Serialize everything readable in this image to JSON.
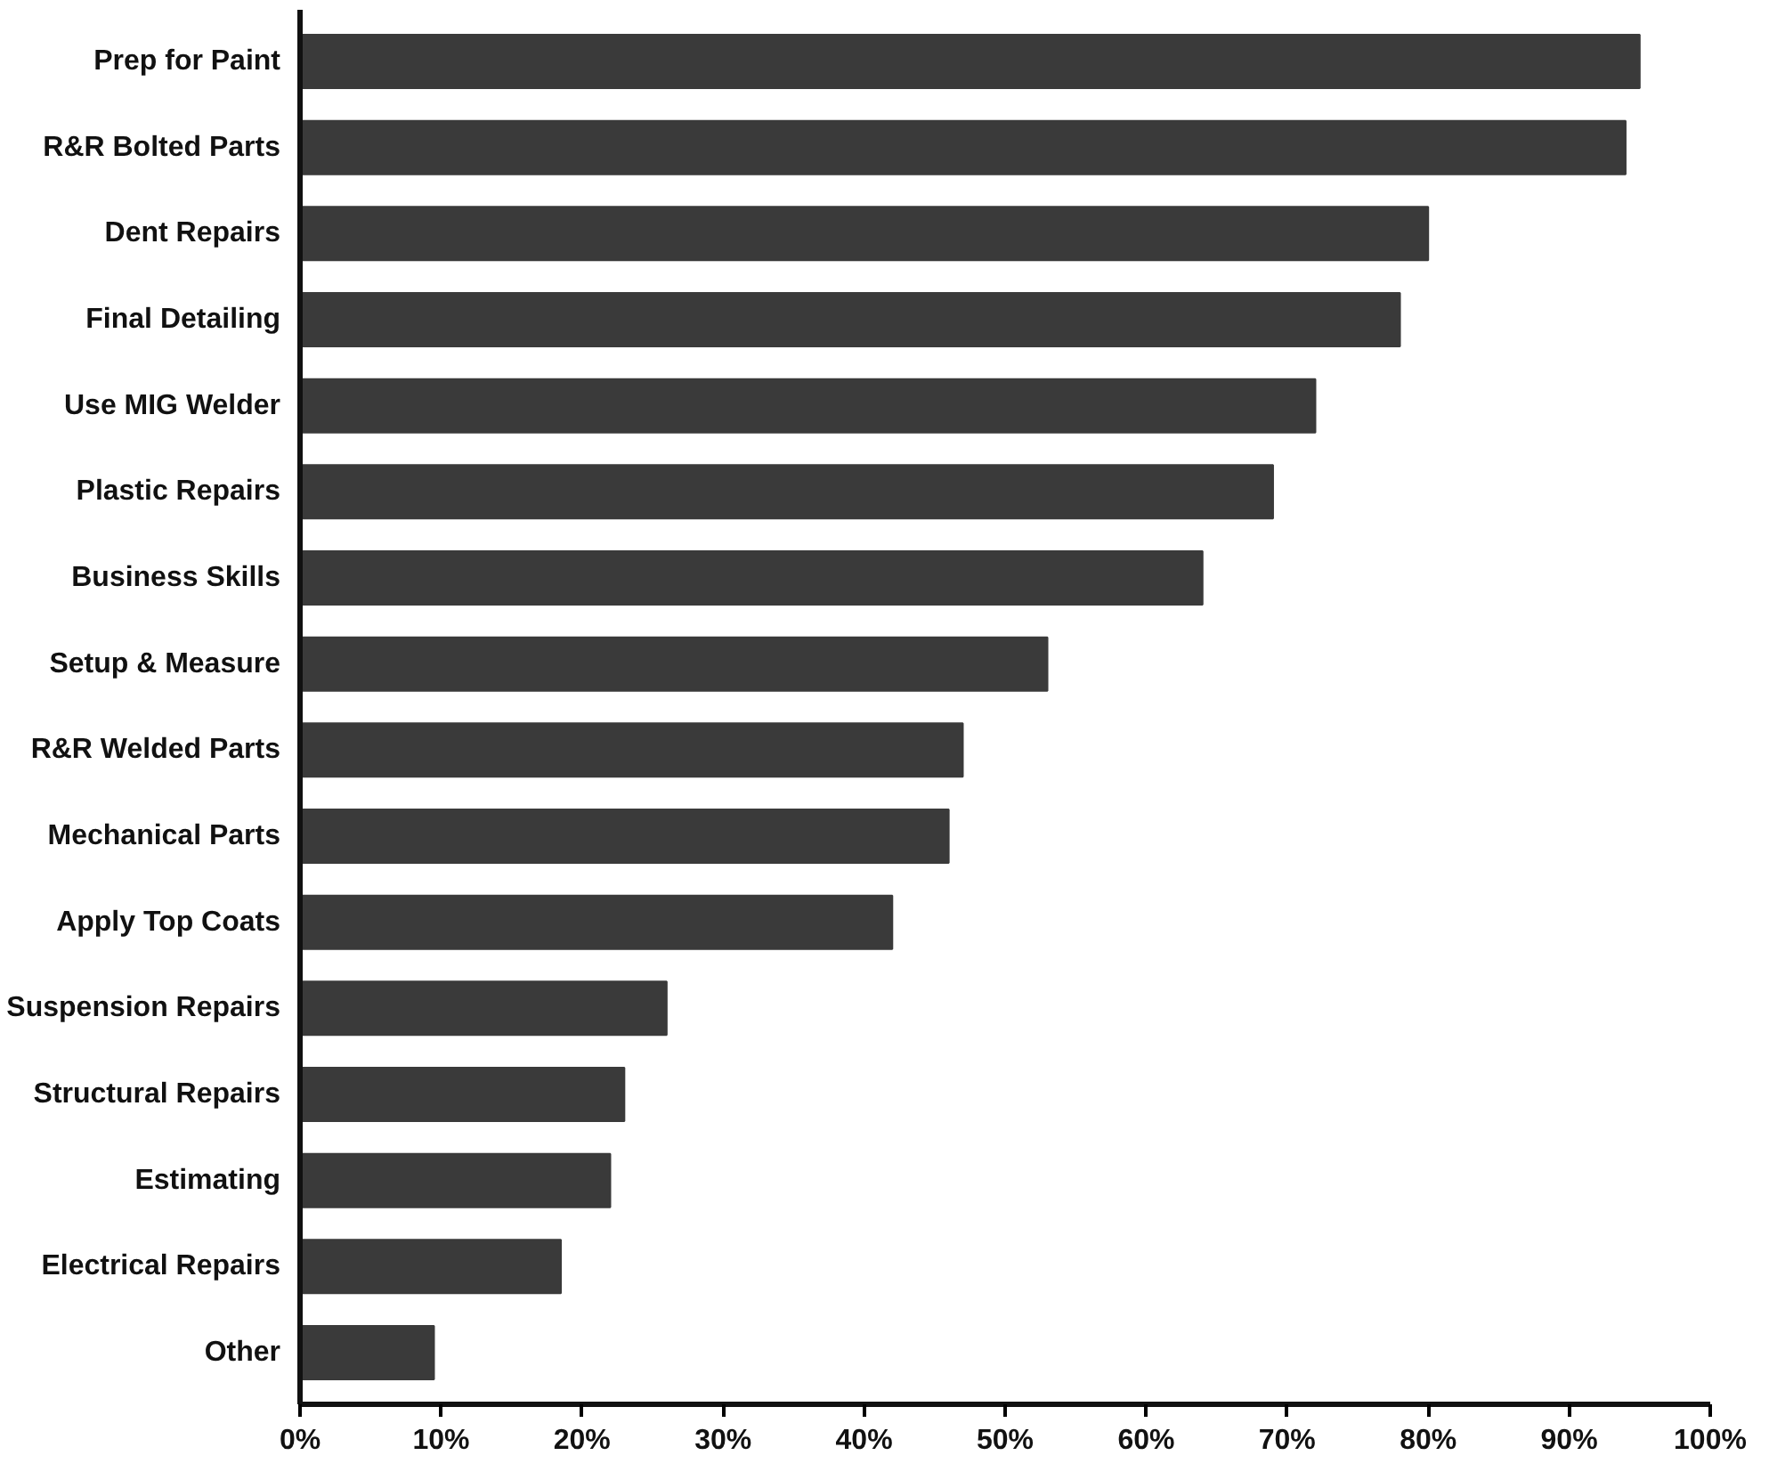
{
  "chart_data": {
    "type": "bar",
    "orientation": "horizontal",
    "categories": [
      "Prep for Paint",
      "R&R Bolted Parts",
      "Dent Repairs",
      "Final Detailing",
      "Use MIG Welder",
      "Plastic Repairs",
      "Business Skills",
      "Setup & Measure",
      "R&R Welded Parts",
      "Mechanical Parts",
      "Apply Top Coats",
      "Suspension Repairs",
      "Structural Repairs",
      "Estimating",
      "Electrical Repairs",
      "Other"
    ],
    "values": [
      95,
      94,
      80,
      78,
      72,
      69,
      64,
      53,
      47,
      46,
      42,
      26,
      23,
      22,
      18.5,
      9.5
    ],
    "color": "#3a3a3a",
    "xlim": [
      0,
      100
    ],
    "xticks": [
      {
        "value": 0,
        "label": "0%"
      },
      {
        "value": 10,
        "label": "10%"
      },
      {
        "value": 20,
        "label": "20%"
      },
      {
        "value": 30,
        "label": "30%"
      },
      {
        "value": 40,
        "label": "40%"
      },
      {
        "value": 50,
        "label": "50%"
      },
      {
        "value": 60,
        "label": "60%"
      },
      {
        "value": 70,
        "label": "70%"
      },
      {
        "value": 80,
        "label": "80%"
      },
      {
        "value": 90,
        "label": "90%"
      },
      {
        "value": 100,
        "label": "100%"
      }
    ],
    "grid": false
  }
}
